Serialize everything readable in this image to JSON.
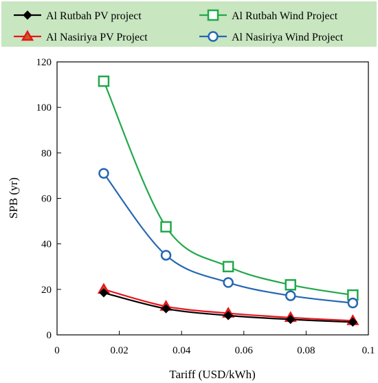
{
  "chart_data": {
    "type": "line",
    "xlabel": "Tariff (USD/kWh)",
    "ylabel": "SPB (yr)",
    "xlim": [
      0,
      0.1
    ],
    "ylim": [
      0,
      120
    ],
    "x_ticks": [
      "0",
      "0.02",
      "0.04",
      "0.06",
      "0.08",
      "0.1"
    ],
    "y_ticks": [
      "0",
      "20",
      "40",
      "60",
      "80",
      "100",
      "120"
    ],
    "grid": false,
    "legend_position": "top",
    "x": [
      0.015,
      0.035,
      0.055,
      0.075,
      0.095
    ],
    "series": [
      {
        "name": "Al Rutbah PV project",
        "marker": "diamond",
        "color": "#000000",
        "values": [
          18.5,
          11.5,
          8.5,
          6.8,
          5.6
        ]
      },
      {
        "name": "Al Rutbah Wind Project",
        "marker": "square",
        "color": "#21a84a",
        "values": [
          111.5,
          47.5,
          30.0,
          22.0,
          17.5
        ]
      },
      {
        "name": "Al Nasiriya PV Project",
        "marker": "triangle",
        "color": "#e8141e",
        "values": [
          20.0,
          12.5,
          9.5,
          7.6,
          6.2
        ]
      },
      {
        "name": "Al Nasiriya Wind Project",
        "marker": "circle",
        "color": "#2467b3",
        "values": [
          71.0,
          35.0,
          23.0,
          17.2,
          14.0
        ]
      }
    ]
  },
  "legend_bg": "#c8e6c0"
}
